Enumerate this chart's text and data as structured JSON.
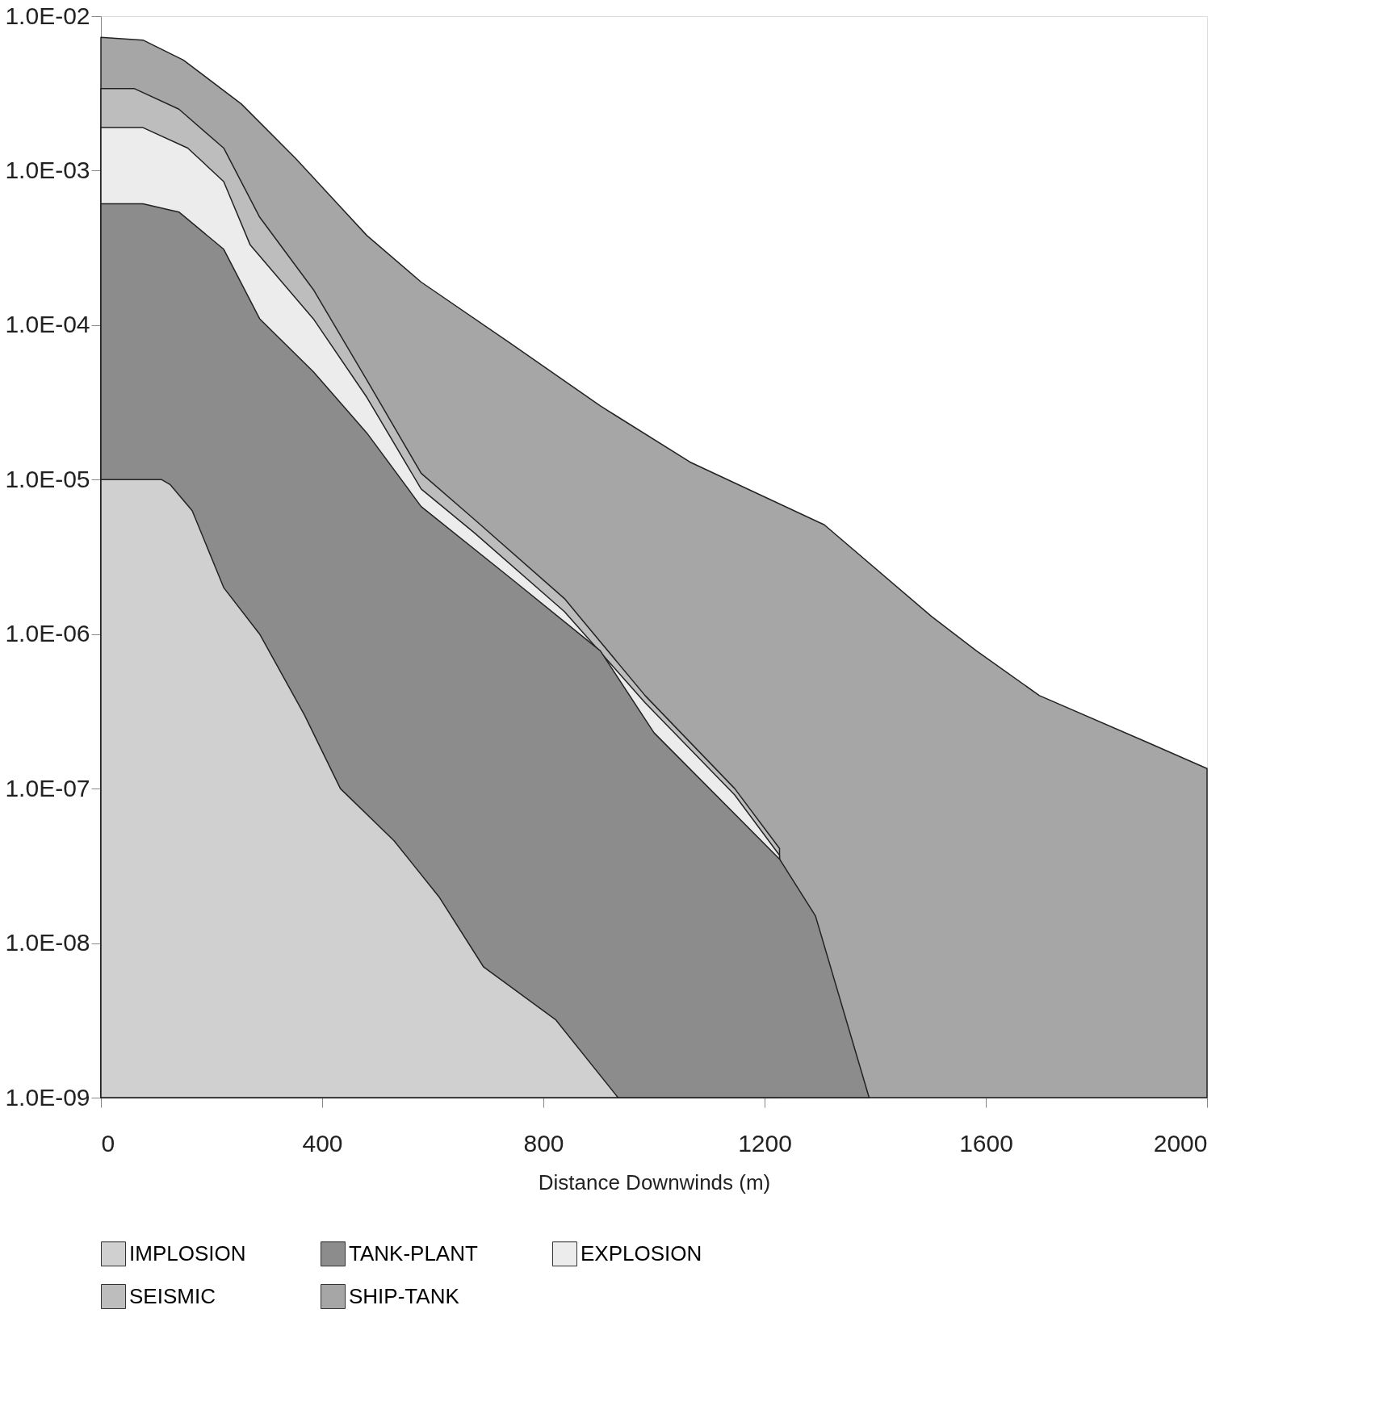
{
  "chart_data": {
    "type": "area",
    "xlabel": "Distance Downwinds (m)",
    "log": "y",
    "grid": false,
    "legend": "bottom",
    "xlim": [
      0,
      2000
    ],
    "ylim": [
      1e-09,
      0.01
    ],
    "xticks": [
      0,
      400,
      800,
      1200,
      1600,
      2000
    ],
    "yticks": [
      {
        "value": 0.01,
        "label": "1.0E-02"
      },
      {
        "value": 0.001,
        "label": "1.0E-03"
      },
      {
        "value": 0.0001,
        "label": "1.0E-04"
      },
      {
        "value": 1e-05,
        "label": "1.0E-05"
      },
      {
        "value": 1e-06,
        "label": "1.0E-06"
      },
      {
        "value": 1e-07,
        "label": "1.0E-07"
      },
      {
        "value": 1e-08,
        "label": "1.0E-08"
      },
      {
        "value": 1e-09,
        "label": "1.0E-09"
      }
    ],
    "series": [
      {
        "name": "IMPLOSION",
        "color": "#d0d0d0",
        "x": [
          0,
          110,
          125,
          165,
          222,
          287,
          368,
          433,
          530,
          611,
          692,
          822,
          935
        ],
        "values": [
          1e-05,
          1e-05,
          9.3e-06,
          6.3e-06,
          2e-06,
          1e-06,
          3e-07,
          1e-07,
          4.6e-08,
          2e-08,
          7e-09,
          3.2e-09,
          1e-09
        ]
      },
      {
        "name": "TANK-PLANT",
        "color": "#8c8c8c",
        "x": [
          0,
          76,
          141,
          222,
          287,
          384,
          481,
          579,
          741,
          903,
          1000,
          1227,
          1292,
          1389
        ],
        "values": [
          0.00061,
          0.00061,
          0.00054,
          0.00031,
          0.00011,
          5e-05,
          2e-05,
          6.7e-06,
          2.3e-06,
          7.8e-07,
          2.3e-07,
          3.5e-08,
          1.5e-08,
          1e-09
        ]
      },
      {
        "name": "EXPLOSION",
        "color": "#ececec",
        "x": [
          0,
          76,
          157,
          222,
          270,
          384,
          481,
          579,
          676,
          838,
          984,
          1146,
          1227
        ],
        "values": [
          0.0019,
          0.0019,
          0.0014,
          0.00085,
          0.00033,
          0.00011,
          3.4e-05,
          8.7e-06,
          4.5e-06,
          1.4e-06,
          3.6e-07,
          9.1e-08,
          3.7e-08
        ]
      },
      {
        "name": "SEISMIC",
        "color": "#bdbdbd",
        "x": [
          0,
          60,
          141,
          222,
          287,
          384,
          481,
          579,
          676,
          838,
          984,
          1146,
          1227
        ],
        "values": [
          0.0034,
          0.0034,
          0.0025,
          0.0014,
          0.0005,
          0.00017,
          4.4e-05,
          1.1e-05,
          5.5e-06,
          1.7e-06,
          4e-07,
          1e-07,
          4.1e-08
        ]
      },
      {
        "name": "SHIP-TANK",
        "color": "#a6a6a6",
        "x": [
          0,
          76,
          149,
          254,
          352,
          481,
          579,
          741,
          903,
          1065,
          1308,
          1502,
          1583,
          1697,
          1891,
          2000
        ],
        "values": [
          0.0073,
          0.007,
          0.0052,
          0.0027,
          0.0012,
          0.00038,
          0.00019,
          7.6e-05,
          3e-05,
          1.3e-05,
          5.1e-06,
          1.3e-06,
          7.8e-07,
          4e-07,
          2e-07,
          1.35e-07
        ]
      }
    ]
  }
}
